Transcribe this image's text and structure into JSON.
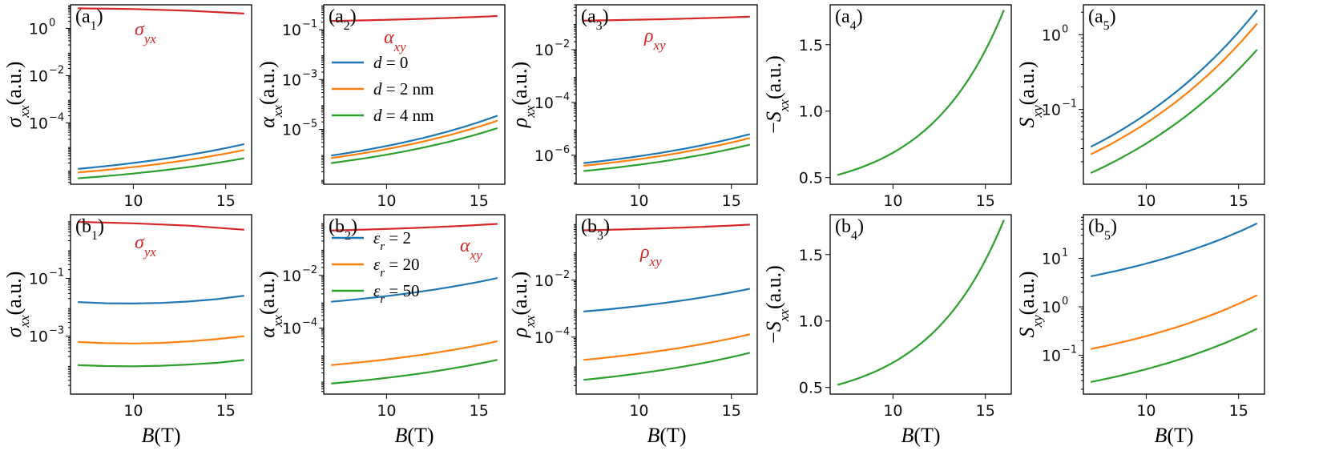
{
  "figure": {
    "x_label": "B(T)"
  },
  "colors": {
    "blue": "#1f77b4",
    "orange": "#ff7f0e",
    "green": "#2ca02c",
    "red": "#d62728"
  },
  "legends": {
    "a": [
      "d = 0",
      "d = 2 nm",
      "d = 4 nm"
    ],
    "b": [
      "εr = 2",
      "εr = 20",
      "εr = 50"
    ]
  },
  "chart_data": [
    {
      "id": "a1",
      "panel_label": "(a1)",
      "type": "line",
      "yscale": "log",
      "ylabel": "σxx(a.u.)",
      "xlabel": "",
      "xlim": [
        6.6,
        16.4
      ],
      "ylim_exp": [
        -6.6,
        1.0
      ],
      "xticks": [
        10,
        15
      ],
      "yticks_exp": [
        0,
        -2,
        -4
      ],
      "annotation": {
        "text": "σyx",
        "color": "#d62728"
      },
      "series": [
        {
          "name": "σyx",
          "color": "#d62728",
          "x": [
            7,
            10,
            13,
            16
          ],
          "log10y": [
            0.85,
            0.82,
            0.75,
            0.63
          ]
        },
        {
          "name": "d=0",
          "color": "#1f77b4",
          "x": [
            7,
            16
          ],
          "log10y_range": [
            -5.95,
            -4.9
          ]
        },
        {
          "name": "d=2 nm",
          "color": "#ff7f0e",
          "x": [
            7,
            16
          ],
          "log10y_range": [
            -6.1,
            -5.15
          ]
        },
        {
          "name": "d=4 nm",
          "color": "#2ca02c",
          "x": [
            7,
            16
          ],
          "log10y_range": [
            -6.35,
            -5.5
          ]
        }
      ]
    },
    {
      "id": "a2",
      "panel_label": "(a2)",
      "type": "line",
      "yscale": "log",
      "ylabel": "αxx(a.u.)",
      "xlabel": "",
      "xlim": [
        6.6,
        16.4
      ],
      "ylim_exp": [
        -7.2,
        0.0
      ],
      "xticks": [
        10,
        15
      ],
      "yticks_exp": [
        -1,
        -3,
        -5
      ],
      "annotation": {
        "text": "αxy",
        "color": "#d62728"
      },
      "legend": "a",
      "series": [
        {
          "name": "αxy",
          "color": "#d62728",
          "x": [
            7,
            16
          ],
          "log10y_range": [
            -0.65,
            -0.45
          ]
        },
        {
          "name": "d=0",
          "color": "#1f77b4",
          "x": [
            7,
            16
          ],
          "log10y_range": [
            -6.05,
            -4.45
          ]
        },
        {
          "name": "d=2 nm",
          "color": "#ff7f0e",
          "x": [
            7,
            16
          ],
          "log10y_range": [
            -6.15,
            -4.65
          ]
        },
        {
          "name": "d=4 nm",
          "color": "#2ca02c",
          "x": [
            7,
            16
          ],
          "log10y_range": [
            -6.35,
            -4.95
          ]
        }
      ]
    },
    {
      "id": "a3",
      "panel_label": "(a3)",
      "type": "line",
      "yscale": "log",
      "ylabel": "ρxx(a.u.)",
      "xlabel": "",
      "xlim": [
        6.6,
        16.4
      ],
      "ylim_exp": [
        -7.1,
        -0.3
      ],
      "xticks": [
        10,
        15
      ],
      "yticks_exp": [
        -2,
        -4,
        -6
      ],
      "annotation": {
        "text": "ρxy",
        "color": "#d62728"
      },
      "series": [
        {
          "name": "ρxy",
          "color": "#d62728",
          "x": [
            7,
            16
          ],
          "log10y_range": [
            -0.9,
            -0.75
          ]
        },
        {
          "name": "d=0",
          "color": "#1f77b4",
          "x": [
            7,
            16
          ],
          "log10y_range": [
            -6.3,
            -5.2
          ]
        },
        {
          "name": "d=2 nm",
          "color": "#ff7f0e",
          "x": [
            7,
            16
          ],
          "log10y_range": [
            -6.4,
            -5.35
          ]
        },
        {
          "name": "d=4 nm",
          "color": "#2ca02c",
          "x": [
            7,
            16
          ],
          "log10y_range": [
            -6.6,
            -5.6
          ]
        }
      ]
    },
    {
      "id": "a4",
      "panel_label": "(a4)",
      "type": "line",
      "yscale": "linear",
      "ylabel": "−Sxx(a.u.)",
      "xlabel": "",
      "xlim": [
        6.6,
        16.4
      ],
      "ylim": [
        0.45,
        1.8
      ],
      "xticks": [
        10,
        15
      ],
      "yticks": [
        0.5,
        1.0,
        1.5
      ],
      "series": [
        {
          "name": "−Sxx",
          "color": "#2ca02c",
          "x": [
            7,
            16
          ],
          "y_range": [
            0.52,
            1.76
          ]
        }
      ]
    },
    {
      "id": "a5",
      "panel_label": "(a5)",
      "type": "line",
      "yscale": "log",
      "ylabel": "Sxy(a.u.)",
      "xlabel": "",
      "xlim": [
        6.6,
        16.4
      ],
      "ylim_exp": [
        -2.0,
        0.4
      ],
      "xticks": [
        10,
        15
      ],
      "yticks_exp": [
        0,
        -1
      ],
      "series": [
        {
          "name": "d=0",
          "color": "#1f77b4",
          "x": [
            7,
            16
          ],
          "log10y_range": [
            -1.5,
            0.33
          ]
        },
        {
          "name": "d=2 nm",
          "color": "#ff7f0e",
          "x": [
            7,
            16
          ],
          "log10y_range": [
            -1.6,
            0.15
          ]
        },
        {
          "name": "d=4 nm",
          "color": "#2ca02c",
          "x": [
            7,
            16
          ],
          "log10y_range": [
            -1.85,
            -0.2
          ]
        }
      ]
    },
    {
      "id": "b1",
      "panel_label": "(b1)",
      "type": "line",
      "yscale": "log",
      "ylabel": "σxx(a.u.)",
      "xlabel": "B(T)",
      "xlim": [
        6.6,
        16.4
      ],
      "ylim_exp": [
        -5.0,
        1.2
      ],
      "xticks": [
        10,
        15
      ],
      "yticks_exp": [
        -1,
        -3
      ],
      "annotation": {
        "text": "σyx",
        "color": "#d62728"
      },
      "series": [
        {
          "name": "σyx",
          "color": "#d62728",
          "x": [
            7,
            10,
            13,
            16
          ],
          "log10y": [
            0.95,
            0.9,
            0.82,
            0.68
          ]
        },
        {
          "name": "εr=2",
          "color": "#1f77b4",
          "x": [
            7,
            8.5,
            10,
            11.5,
            13,
            14.5,
            16
          ],
          "log10y": [
            -1.82,
            -1.86,
            -1.87,
            -1.85,
            -1.8,
            -1.72,
            -1.6
          ]
        },
        {
          "name": "εr=20",
          "color": "#ff7f0e",
          "x": [
            7,
            8.5,
            10,
            11.5,
            13,
            14.5,
            16
          ],
          "log10y": [
            -3.2,
            -3.24,
            -3.25,
            -3.23,
            -3.18,
            -3.1,
            -3.0
          ]
        },
        {
          "name": "εr=50",
          "color": "#2ca02c",
          "x": [
            7,
            8.5,
            10,
            11.5,
            13,
            14.5,
            16
          ],
          "log10y": [
            -4.0,
            -4.03,
            -4.04,
            -4.02,
            -3.98,
            -3.92,
            -3.82
          ]
        }
      ]
    },
    {
      "id": "b2",
      "panel_label": "(b2)",
      "type": "line",
      "yscale": "log",
      "ylabel": "αxx(a.u.)",
      "xlabel": "B(T)",
      "xlim": [
        6.6,
        16.4
      ],
      "ylim_exp": [
        -6.5,
        0.3
      ],
      "xticks": [
        10,
        15
      ],
      "yticks_exp": [
        -2,
        -4
      ],
      "annotation": {
        "text": "αxy",
        "color": "#d62728"
      },
      "legend": "b",
      "series": [
        {
          "name": "αxy",
          "color": "#d62728",
          "x": [
            7,
            16
          ],
          "log10y_range": [
            -0.3,
            -0.05
          ]
        },
        {
          "name": "εr=2",
          "color": "#1f77b4",
          "x": [
            7,
            16
          ],
          "log10y_range": [
            -3.0,
            -2.1
          ]
        },
        {
          "name": "εr=20",
          "color": "#ff7f0e",
          "x": [
            7,
            16
          ],
          "log10y_range": [
            -5.4,
            -4.5
          ]
        },
        {
          "name": "εr=50",
          "color": "#2ca02c",
          "x": [
            7,
            16
          ],
          "log10y_range": [
            -6.1,
            -5.2
          ]
        }
      ]
    },
    {
      "id": "b3",
      "panel_label": "(b3)",
      "type": "line",
      "yscale": "log",
      "ylabel": "ρxx(a.u.)",
      "xlabel": "B(T)",
      "xlim": [
        6.6,
        16.4
      ],
      "ylim_exp": [
        -6.0,
        0.3
      ],
      "xticks": [
        10,
        15
      ],
      "yticks_exp": [
        -2,
        -4
      ],
      "annotation": {
        "text": "ρxy",
        "color": "#d62728"
      },
      "series": [
        {
          "name": "ρxy",
          "color": "#d62728",
          "x": [
            7,
            16
          ],
          "log10y_range": [
            -0.25,
            -0.05
          ]
        },
        {
          "name": "εr=2",
          "color": "#1f77b4",
          "x": [
            7,
            16
          ],
          "log10y_range": [
            -3.1,
            -2.3
          ]
        },
        {
          "name": "εr=20",
          "color": "#ff7f0e",
          "x": [
            7,
            16
          ],
          "log10y_range": [
            -4.8,
            -3.9
          ]
        },
        {
          "name": "εr=50",
          "color": "#2ca02c",
          "x": [
            7,
            16
          ],
          "log10y_range": [
            -5.5,
            -4.55
          ]
        }
      ]
    },
    {
      "id": "b4",
      "panel_label": "(b4)",
      "type": "line",
      "yscale": "linear",
      "ylabel": "−Sxx(a.u.)",
      "xlabel": "B(T)",
      "xlim": [
        6.6,
        16.4
      ],
      "ylim": [
        0.45,
        1.8
      ],
      "xticks": [
        10,
        15
      ],
      "yticks": [
        0.5,
        1.0,
        1.5
      ],
      "series": [
        {
          "name": "−Sxx",
          "color": "#2ca02c",
          "x": [
            7,
            16
          ],
          "y_range": [
            0.52,
            1.76
          ]
        }
      ]
    },
    {
      "id": "b5",
      "panel_label": "(b5)",
      "type": "line",
      "yscale": "log",
      "ylabel": "Sxy(a.u.)",
      "xlabel": "B(T)",
      "xlim": [
        6.6,
        16.4
      ],
      "ylim_exp": [
        -1.8,
        1.9
      ],
      "xticks": [
        10,
        15
      ],
      "yticks_exp": [
        1,
        0,
        -1
      ],
      "series": [
        {
          "name": "εr=2",
          "color": "#1f77b4",
          "x": [
            7,
            16
          ],
          "log10y_range": [
            0.63,
            1.72
          ]
        },
        {
          "name": "εr=20",
          "color": "#ff7f0e",
          "x": [
            7,
            16
          ],
          "log10y_range": [
            -0.87,
            0.24
          ]
        },
        {
          "name": "εr=50",
          "color": "#2ca02c",
          "x": [
            7,
            16
          ],
          "log10y_range": [
            -1.55,
            -0.45
          ]
        }
      ]
    }
  ]
}
